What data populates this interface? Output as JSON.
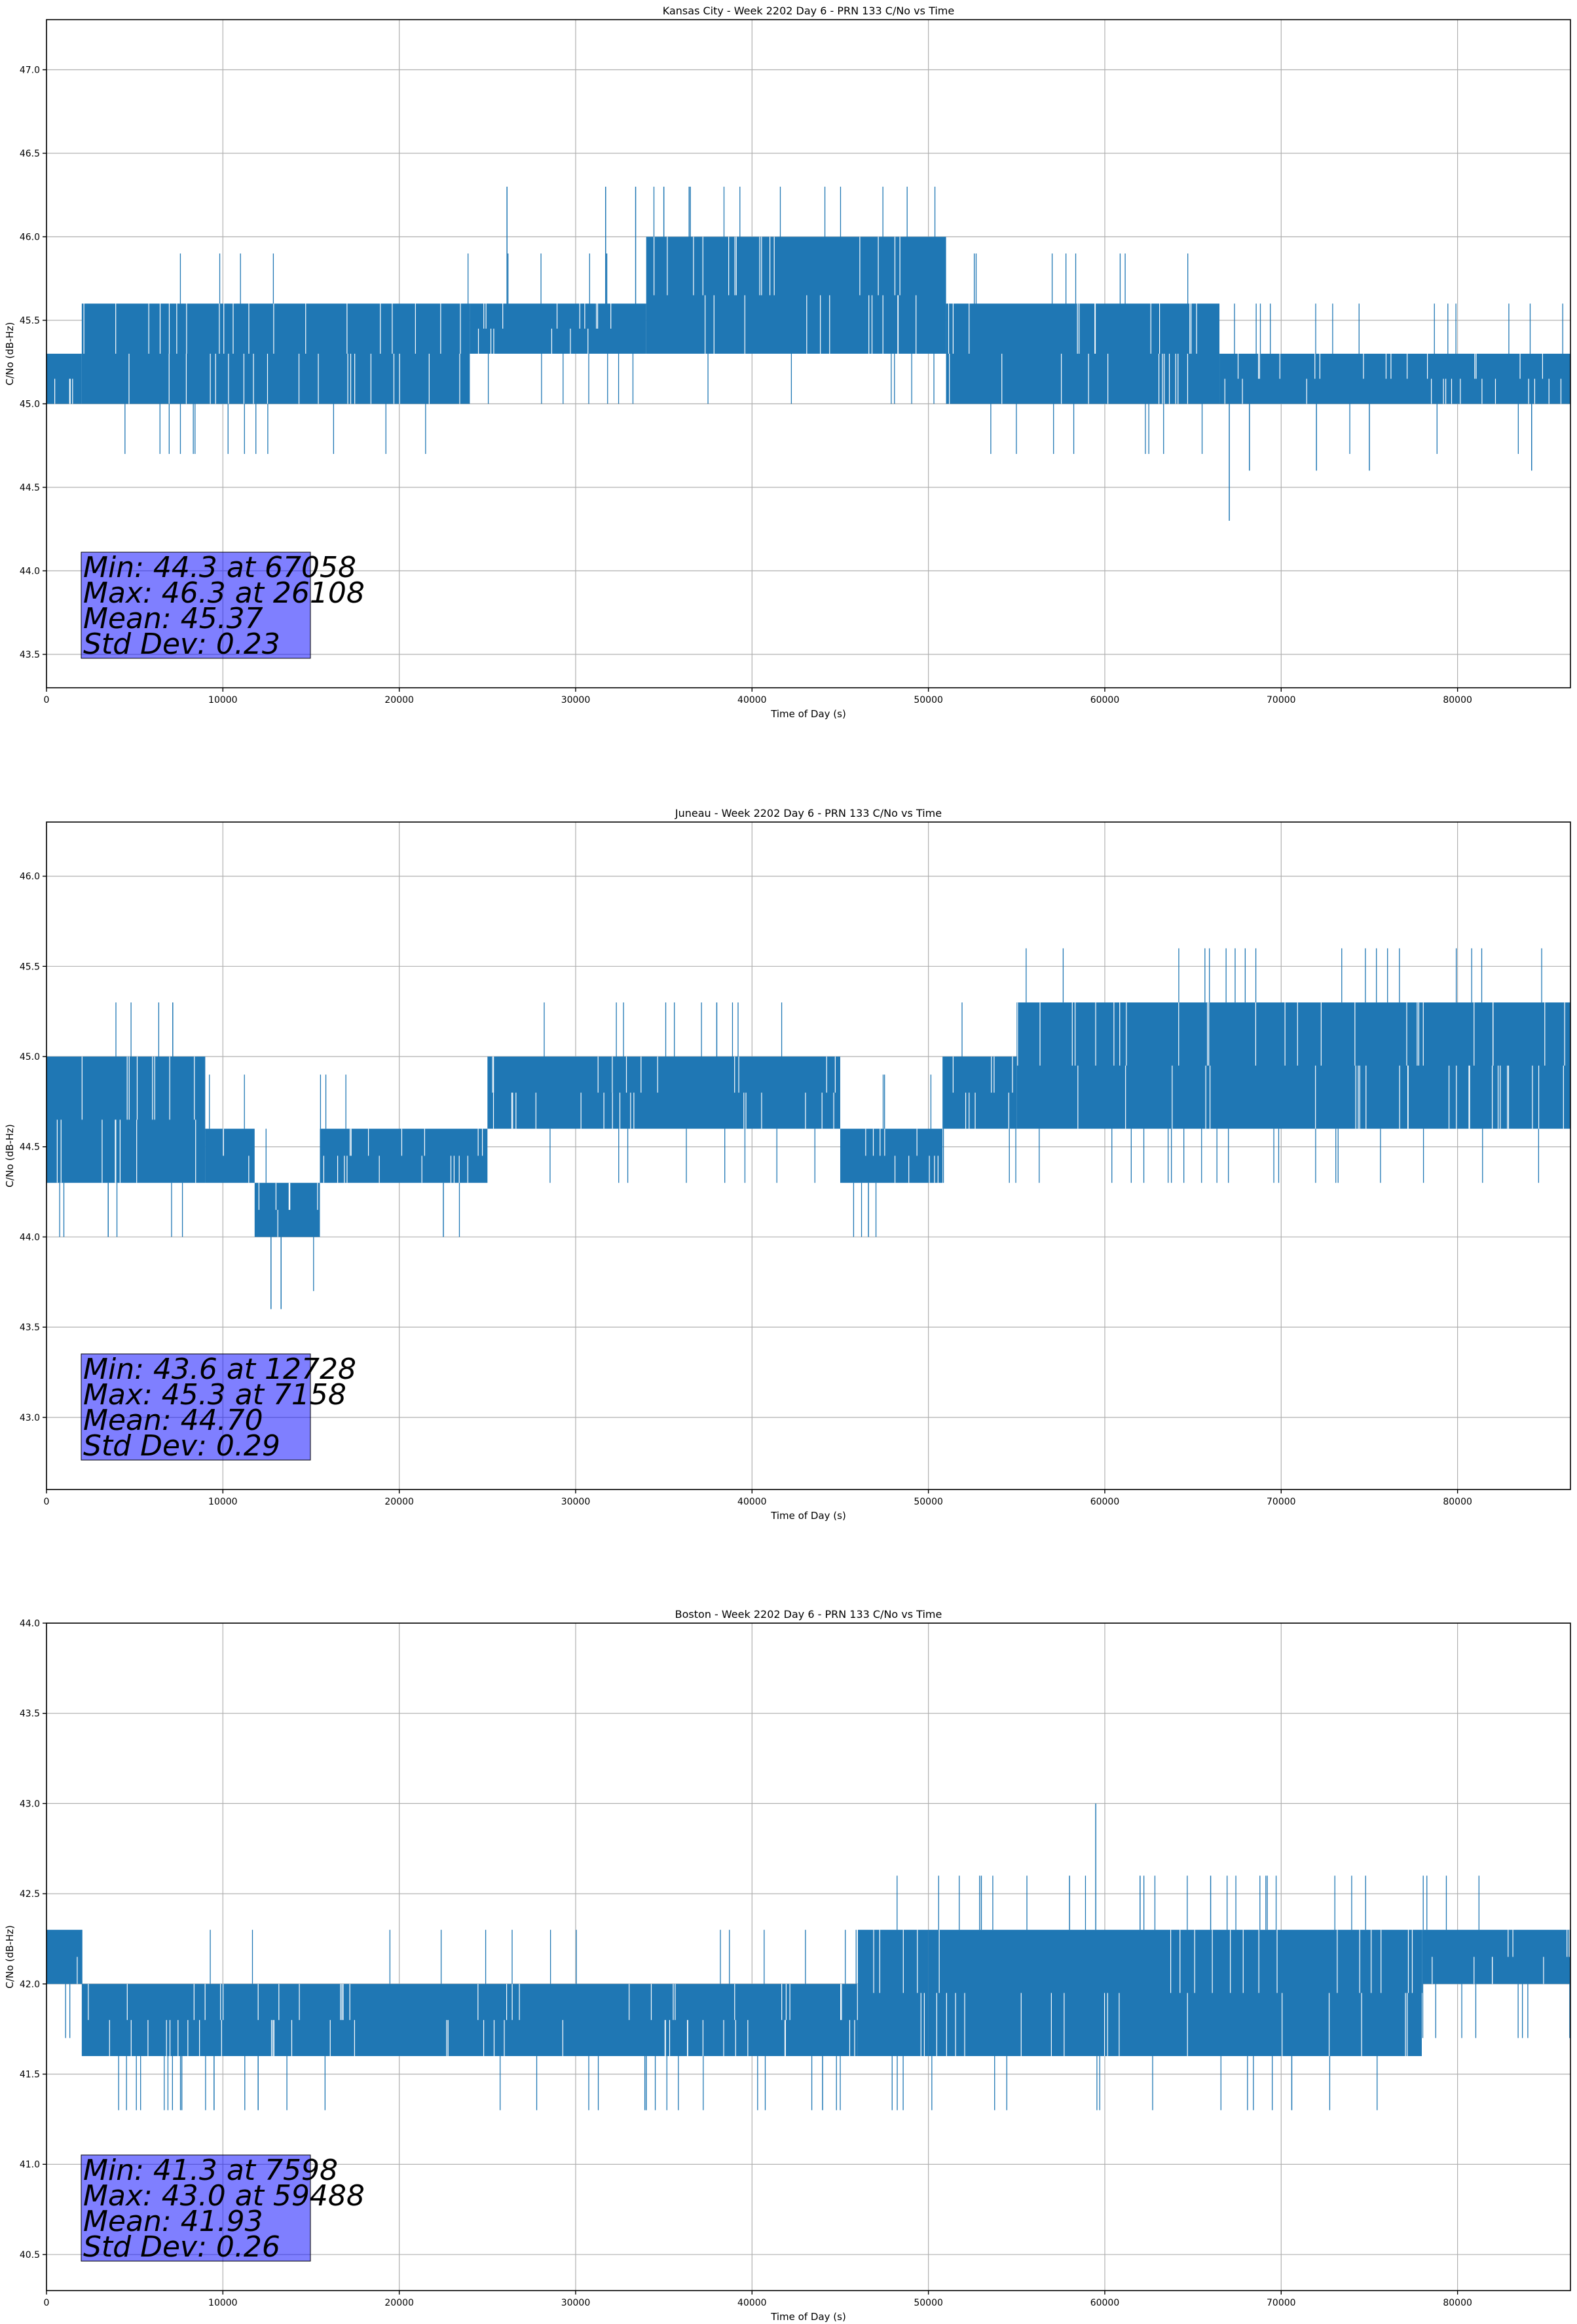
{
  "chart_data": [
    {
      "type": "line",
      "title": "Kansas City - Week 2202 Day 6 - PRN 133 C/No vs Time",
      "xlabel": "Time of Day (s)",
      "ylabel": "C/No (dB-Hz)",
      "xlim": [
        0,
        86400
      ],
      "ylim": [
        43.3,
        47.3
      ],
      "xticks": [
        0,
        10000,
        20000,
        30000,
        40000,
        50000,
        60000,
        70000,
        80000
      ],
      "yticks": [
        43.5,
        44.0,
        44.5,
        45.0,
        45.5,
        46.0,
        46.5,
        47.0
      ],
      "ytick_labels": [
        "43.5",
        "44.0",
        "44.5",
        "45.0",
        "45.5",
        "46.0",
        "46.5",
        "47.0"
      ],
      "grid": true,
      "color": "#1f77b4",
      "band_segments": [
        {
          "x": [
            0,
            2000
          ],
          "low": 45.0,
          "high": 45.3
        },
        {
          "x": [
            2000,
            24000
          ],
          "low": 45.0,
          "high": 45.6
        },
        {
          "x": [
            24000,
            34000
          ],
          "low": 45.3,
          "high": 45.6
        },
        {
          "x": [
            34000,
            51000
          ],
          "low": 45.3,
          "high": 46.0
        },
        {
          "x": [
            51000,
            66500
          ],
          "low": 45.0,
          "high": 45.6
        },
        {
          "x": [
            66500,
            86400
          ],
          "low": 45.0,
          "high": 45.3
        }
      ],
      "spikes": [
        {
          "x": 26108,
          "y": 46.3
        },
        {
          "x": 31700,
          "y": 46.3
        },
        {
          "x": 33400,
          "y": 46.3
        },
        {
          "x": 35000,
          "y": 46.3
        },
        {
          "x": 36500,
          "y": 46.3
        },
        {
          "x": 67058,
          "y": 44.3
        },
        {
          "x": 68200,
          "y": 44.6
        },
        {
          "x": 72000,
          "y": 44.6
        },
        {
          "x": 75000,
          "y": 44.6
        },
        {
          "x": 84200,
          "y": 44.6
        }
      ],
      "stats": [
        "Min: 44.3 at 67058",
        "Max: 46.3 at 26108",
        "Mean: 45.37",
        "Std Dev: 0.23"
      ]
    },
    {
      "type": "line",
      "title": "Juneau - Week 2202 Day 6 - PRN 133 C/No vs Time",
      "xlabel": "Time of Day (s)",
      "ylabel": "C/No (dB-Hz)",
      "xlim": [
        0,
        86400
      ],
      "ylim": [
        42.6,
        46.3
      ],
      "xticks": [
        0,
        10000,
        20000,
        30000,
        40000,
        50000,
        60000,
        70000,
        80000
      ],
      "yticks": [
        43.0,
        43.5,
        44.0,
        44.5,
        45.0,
        45.5,
        46.0
      ],
      "ytick_labels": [
        "43.0",
        "43.5",
        "44.0",
        "44.5",
        "45.0",
        "45.5",
        "46.0"
      ],
      "grid": true,
      "color": "#1f77b4",
      "band_segments": [
        {
          "x": [
            0,
            9000
          ],
          "low": 44.3,
          "high": 45.0
        },
        {
          "x": [
            9000,
            11800
          ],
          "low": 44.3,
          "high": 44.6
        },
        {
          "x": [
            11800,
            15500
          ],
          "low": 44.0,
          "high": 44.3
        },
        {
          "x": [
            15500,
            25000
          ],
          "low": 44.3,
          "high": 44.6
        },
        {
          "x": [
            25000,
            45000
          ],
          "low": 44.6,
          "high": 45.0
        },
        {
          "x": [
            45000,
            50800
          ],
          "low": 44.3,
          "high": 44.6
        },
        {
          "x": [
            50800,
            55000
          ],
          "low": 44.6,
          "high": 45.0
        },
        {
          "x": [
            55000,
            86400
          ],
          "low": 44.6,
          "high": 45.3
        }
      ],
      "spikes": [
        {
          "x": 7158,
          "y": 45.3
        },
        {
          "x": 38000,
          "y": 45.3
        },
        {
          "x": 12728,
          "y": 43.6
        },
        {
          "x": 13300,
          "y": 43.6
        },
        {
          "x": 46600,
          "y": 44.0
        },
        {
          "x": 3500,
          "y": 44.0
        },
        {
          "x": 22500,
          "y": 44.0
        }
      ],
      "stats": [
        "Min: 43.6 at 12728",
        "Max: 45.3 at 7158",
        "Mean: 44.70",
        "Std Dev: 0.29"
      ]
    },
    {
      "type": "line",
      "title": "Boston - Week 2202 Day 6 - PRN 133 C/No vs Time",
      "xlabel": "Time of Day (s)",
      "ylabel": "C/No (dB-Hz)",
      "xlim": [
        0,
        86400
      ],
      "ylim": [
        40.3,
        44.0
      ],
      "xticks": [
        0,
        10000,
        20000,
        30000,
        40000,
        50000,
        60000,
        70000,
        80000
      ],
      "yticks": [
        40.5,
        41.0,
        41.5,
        42.0,
        42.5,
        43.0,
        43.5,
        44.0
      ],
      "ytick_labels": [
        "40.5",
        "41.0",
        "41.5",
        "42.0",
        "42.5",
        "43.0",
        "43.5",
        "44.0"
      ],
      "grid": true,
      "color": "#1f77b4",
      "band_segments": [
        {
          "x": [
            0,
            2000
          ],
          "low": 42.0,
          "high": 42.3
        },
        {
          "x": [
            2000,
            46000
          ],
          "low": 41.6,
          "high": 42.0
        },
        {
          "x": [
            46000,
            50000
          ],
          "low": 41.6,
          "high": 42.3
        },
        {
          "x": [
            50000,
            78000
          ],
          "low": 41.6,
          "high": 42.3
        },
        {
          "x": [
            78000,
            86400
          ],
          "low": 42.0,
          "high": 42.3
        }
      ],
      "spikes": [
        {
          "x": 59488,
          "y": 43.0
        },
        {
          "x": 53000,
          "y": 42.6
        },
        {
          "x": 58000,
          "y": 42.6
        },
        {
          "x": 62000,
          "y": 42.6
        },
        {
          "x": 66000,
          "y": 42.6
        },
        {
          "x": 7598,
          "y": 41.3
        },
        {
          "x": 9500,
          "y": 41.3
        },
        {
          "x": 12000,
          "y": 41.3
        },
        {
          "x": 34000,
          "y": 41.3
        },
        {
          "x": 44000,
          "y": 41.3
        },
        {
          "x": 70600,
          "y": 41.3
        }
      ],
      "stats": [
        "Min: 41.3 at 7598",
        "Max: 43.0 at 59488",
        "Mean: 41.93",
        "Std Dev: 0.26"
      ]
    }
  ]
}
